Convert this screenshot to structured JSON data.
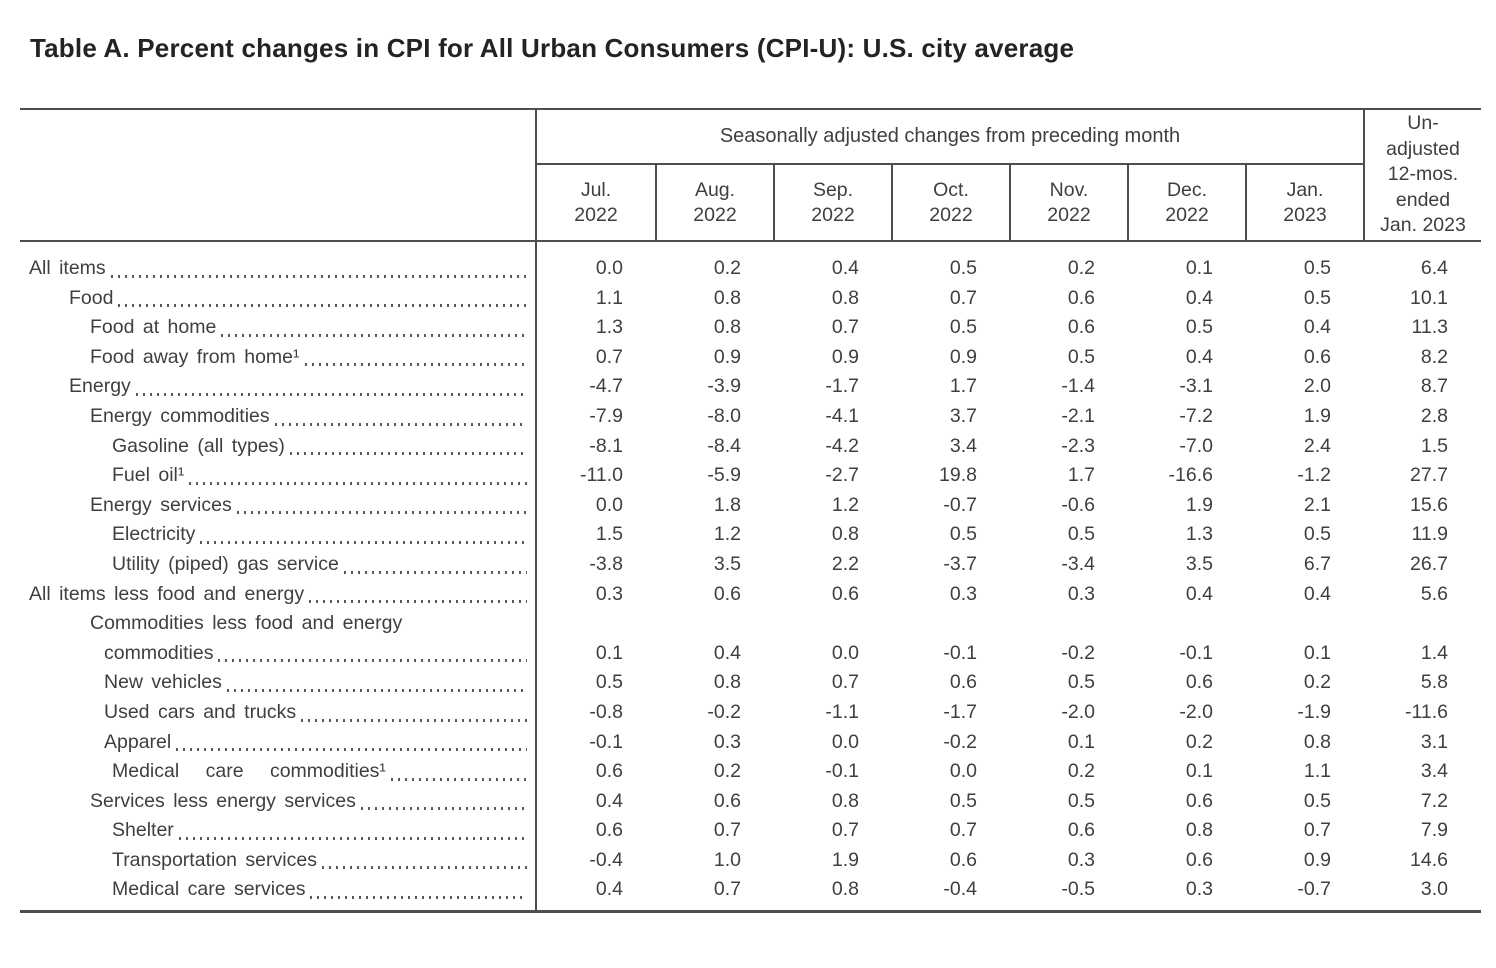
{
  "title": "Table A. Percent changes in CPI for All Urban Consumers (CPI-U): U.S. city average",
  "table": {
    "group_header": "Seasonally adjusted changes from preceding month",
    "month_columns": [
      {
        "month": "Jul.",
        "year": "2022"
      },
      {
        "month": "Aug.",
        "year": "2022"
      },
      {
        "month": "Sep.",
        "year": "2022"
      },
      {
        "month": "Oct.",
        "year": "2022"
      },
      {
        "month": "Nov.",
        "year": "2022"
      },
      {
        "month": "Dec.",
        "year": "2022"
      },
      {
        "month": "Jan.",
        "year": "2023"
      }
    ],
    "last_column_lines": [
      "Un-",
      "adjusted",
      "12-mos.",
      "ended",
      "Jan. 2023"
    ],
    "rows": [
      {
        "label": "All items",
        "indent": 0,
        "values": [
          "0.0",
          "0.2",
          "0.4",
          "0.5",
          "0.2",
          "0.1",
          "0.5",
          "6.4"
        ]
      },
      {
        "label": "Food",
        "indent": 1,
        "values": [
          "1.1",
          "0.8",
          "0.8",
          "0.7",
          "0.6",
          "0.4",
          "0.5",
          "10.1"
        ]
      },
      {
        "label": "Food at home",
        "indent": 2,
        "values": [
          "1.3",
          "0.8",
          "0.7",
          "0.5",
          "0.6",
          "0.5",
          "0.4",
          "11.3"
        ]
      },
      {
        "label": "Food away from home¹",
        "indent": 2,
        "values": [
          "0.7",
          "0.9",
          "0.9",
          "0.9",
          "0.5",
          "0.4",
          "0.6",
          "8.2"
        ]
      },
      {
        "label": "Energy",
        "indent": 1,
        "values": [
          "-4.7",
          "-3.9",
          "-1.7",
          "1.7",
          "-1.4",
          "-3.1",
          "2.0",
          "8.7"
        ]
      },
      {
        "label": "Energy commodities",
        "indent": 2,
        "values": [
          "-7.9",
          "-8.0",
          "-4.1",
          "3.7",
          "-2.1",
          "-7.2",
          "1.9",
          "2.8"
        ]
      },
      {
        "label": "Gasoline (all types)",
        "indent": 4,
        "values": [
          "-8.1",
          "-8.4",
          "-4.2",
          "3.4",
          "-2.3",
          "-7.0",
          "2.4",
          "1.5"
        ]
      },
      {
        "label": "Fuel oil¹",
        "indent": 4,
        "values": [
          "-11.0",
          "-5.9",
          "-2.7",
          "19.8",
          "1.7",
          "-16.6",
          "-1.2",
          "27.7"
        ]
      },
      {
        "label": "Energy services",
        "indent": 2,
        "values": [
          "0.0",
          "1.8",
          "1.2",
          "-0.7",
          "-0.6",
          "1.9",
          "2.1",
          "15.6"
        ]
      },
      {
        "label": "Electricity",
        "indent": 4,
        "values": [
          "1.5",
          "1.2",
          "0.8",
          "0.5",
          "0.5",
          "1.3",
          "0.5",
          "11.9"
        ]
      },
      {
        "label": "Utility (piped) gas service",
        "indent": 4,
        "values": [
          "-3.8",
          "3.5",
          "2.2",
          "-3.7",
          "-3.4",
          "3.5",
          "6.7",
          "26.7"
        ]
      },
      {
        "label": "All items less food and energy",
        "indent": 0,
        "values": [
          "0.3",
          "0.6",
          "0.6",
          "0.3",
          "0.3",
          "0.4",
          "0.4",
          "5.6"
        ]
      },
      {
        "label": "Commodities less food and energy",
        "label2": "commodities",
        "indent": 2,
        "indent2": 3,
        "values": [
          "0.1",
          "0.4",
          "0.0",
          "-0.1",
          "-0.2",
          "-0.1",
          "0.1",
          "1.4"
        ]
      },
      {
        "label": "New vehicles",
        "indent": 3,
        "values": [
          "0.5",
          "0.8",
          "0.7",
          "0.6",
          "0.5",
          "0.6",
          "0.2",
          "5.8"
        ]
      },
      {
        "label": "Used cars and trucks",
        "indent": 3,
        "values": [
          "-0.8",
          "-0.2",
          "-1.1",
          "-1.7",
          "-2.0",
          "-2.0",
          "-1.9",
          "-11.6"
        ]
      },
      {
        "label": "Apparel",
        "indent": 3,
        "values": [
          "-0.1",
          "0.3",
          "0.0",
          "-0.2",
          "0.1",
          "0.2",
          "0.8",
          "3.1"
        ]
      },
      {
        "label": "Medical care commodities¹",
        "indent": 4,
        "justified": true,
        "values": [
          "0.6",
          "0.2",
          "-0.1",
          "0.0",
          "0.2",
          "0.1",
          "1.1",
          "3.4"
        ]
      },
      {
        "label": "Services less energy services",
        "indent": 2,
        "values": [
          "0.4",
          "0.6",
          "0.8",
          "0.5",
          "0.5",
          "0.6",
          "0.5",
          "7.2"
        ]
      },
      {
        "label": "Shelter",
        "indent": 4,
        "values": [
          "0.6",
          "0.7",
          "0.7",
          "0.7",
          "0.6",
          "0.8",
          "0.7",
          "7.9"
        ]
      },
      {
        "label": "Transportation services",
        "indent": 4,
        "values": [
          "-0.4",
          "1.0",
          "1.9",
          "0.6",
          "0.3",
          "0.6",
          "0.9",
          "14.6"
        ]
      },
      {
        "label": "Medical care services",
        "indent": 4,
        "values": [
          "0.4",
          "0.7",
          "0.8",
          "-0.4",
          "-0.5",
          "0.3",
          "-0.7",
          "3.0"
        ]
      }
    ]
  }
}
